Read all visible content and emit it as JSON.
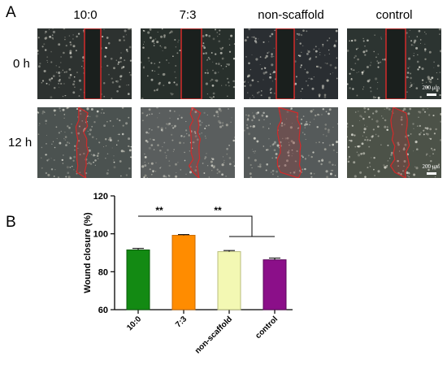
{
  "panels": {
    "a": "A",
    "b": "B"
  },
  "columns": [
    "10:0",
    "7:3",
    "non-scaffold",
    "control"
  ],
  "rows": [
    "0 h",
    "12 h"
  ],
  "scale_bar_label": "200 μm",
  "colors": {
    "wound_outline": "#d32a2a",
    "bar_10_0": "#138a13",
    "bar_7_3": "#ff8c00",
    "bar_non_scaffold": "#f3f8b3",
    "bar_control": "#8b0f89"
  },
  "chart_data": {
    "type": "bar",
    "categories": [
      "10:0",
      "7:3",
      "non-scaffold",
      "control"
    ],
    "values": [
      91.5,
      99.2,
      90.6,
      86.3
    ],
    "errors": [
      0.8,
      0.4,
      0.6,
      0.9
    ],
    "ylabel": "Wound  closure (%)",
    "ylim": [
      60,
      120
    ],
    "yticks": [
      "60",
      "80",
      "100",
      "120"
    ],
    "significance": [
      "**",
      "**"
    ],
    "grid": false,
    "legend": "none"
  }
}
